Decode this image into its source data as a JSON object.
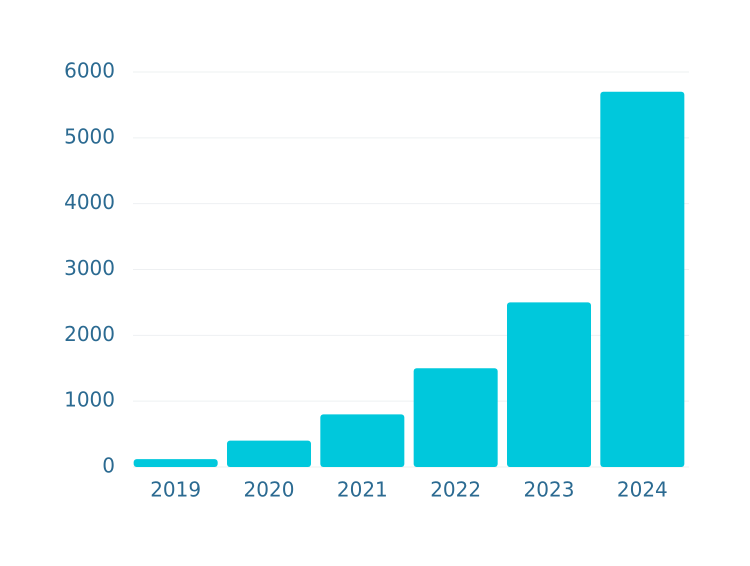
{
  "chart_data": {
    "type": "bar",
    "categories": [
      "2019",
      "2020",
      "2021",
      "2022",
      "2023",
      "2024"
    ],
    "values": [
      120,
      400,
      800,
      1500,
      2500,
      5700
    ],
    "color": "#00c8dc",
    "ylim": [
      0,
      6000
    ],
    "yticks": [
      0,
      1000,
      2000,
      3000,
      4000,
      5000,
      6000
    ],
    "grid": true
  }
}
